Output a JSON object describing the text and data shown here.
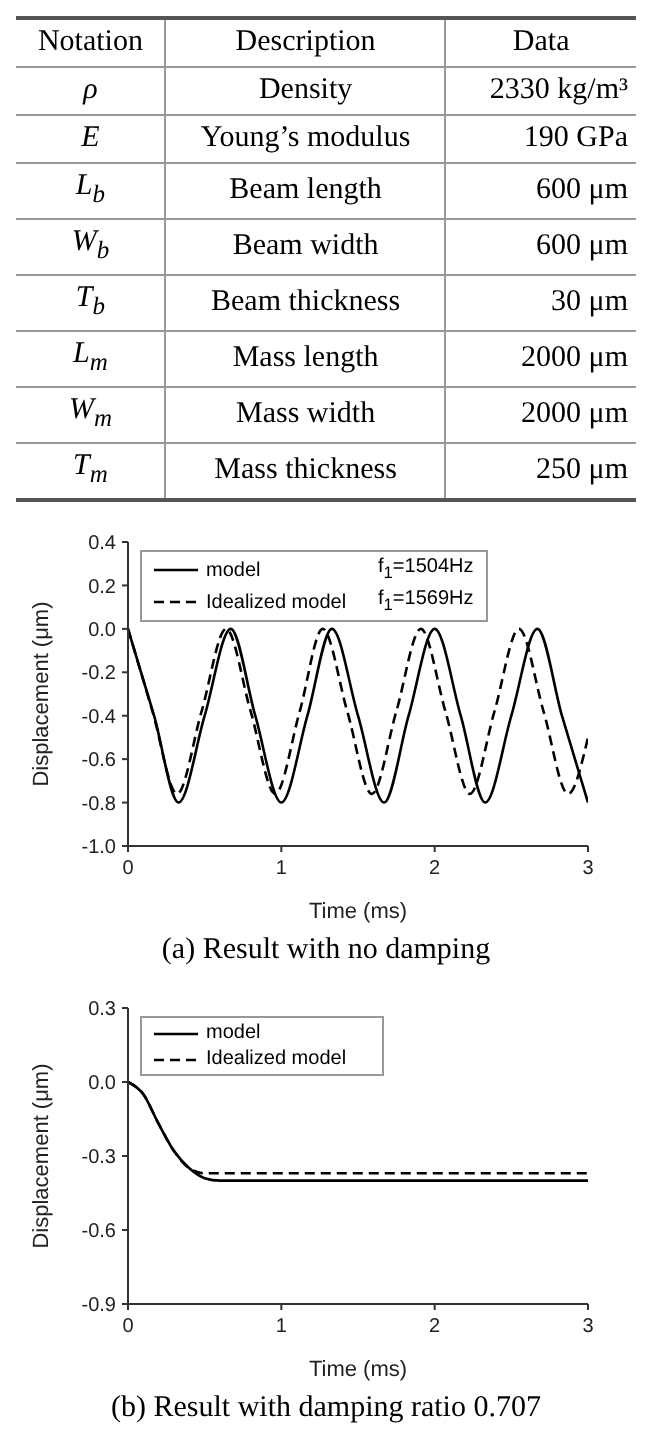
{
  "chart_data": [
    {
      "type": "other",
      "annotations": [
        "Notation",
        "Description",
        "Data"
      ],
      "y_categories": [
        "ρ",
        "E",
        "L$_{b}$",
        "W$_{b}$",
        "T$_{b}$",
        "L$_{m}$",
        "W$_{m}$",
        "T$_{m}$"
      ],
      "categories": [
        "Density",
        "Young’s modulus",
        "Beam length",
        "Beam width",
        "Beam thickness",
        "Mass length",
        "Mass width",
        "Mass thickness"
      ],
      "value_labels": [
        "2330 kg/m³",
        "190 GPa",
        "600 μm",
        "600 μm",
        "30 μm",
        "2000 μm",
        "2000 μm",
        "250 μm"
      ]
    },
    {
      "type": "line",
      "title": "(a) Result with no damping",
      "xlabel": "Time (ms)",
      "ylabel": "Displacement (μm)",
      "xlim": [
        0,
        3
      ],
      "xticks": [
        0,
        1,
        2,
        3
      ],
      "ylim": [
        -1.0,
        0.4
      ],
      "yticks": [
        {
          "value": -1.0,
          "label": "-1.0"
        },
        {
          "value": -0.8,
          "label": "-0.8"
        },
        {
          "value": -0.6,
          "label": "-0.6"
        },
        {
          "value": -0.4,
          "label": "-0.4"
        },
        {
          "value": -0.2,
          "label": "-0.2"
        },
        {
          "value": 0,
          "label": "0.0"
        },
        {
          "value": 0.2,
          "label": "0.2"
        },
        {
          "value": 0.4,
          "label": "0.4"
        }
      ],
      "legend": "top left",
      "grid": false,
      "annotations": [
        "f$_{1}$=1504Hz",
        "f$_{1}$=1569Hz"
      ],
      "series": [
        {
          "name": "model",
          "color": "#000000",
          "line_style": "solid",
          "x": [
            0,
            0.17,
            0.33,
            0.5,
            0.67,
            0.83,
            1.0,
            1.17,
            1.33,
            1.5,
            1.67,
            1.83,
            2.0,
            2.17,
            2.33,
            2.5,
            2.67,
            2.83,
            3.0
          ],
          "values": [
            0,
            -0.4,
            -0.8,
            -0.4,
            0,
            -0.4,
            -0.8,
            -0.4,
            0,
            -0.4,
            -0.8,
            -0.4,
            0,
            -0.4,
            -0.8,
            -0.4,
            0,
            -0.4,
            -0.8
          ]
        },
        {
          "name": "Idealized model",
          "color": "#000000",
          "line_style": "dashed",
          "x": [
            0,
            0.16,
            0.32,
            0.48,
            0.64,
            0.8,
            0.96,
            1.12,
            1.27,
            1.43,
            1.59,
            1.75,
            1.91,
            2.07,
            2.23,
            2.39,
            2.55,
            2.71,
            2.87,
            3.0
          ],
          "values": [
            0,
            -0.38,
            -0.76,
            -0.38,
            0,
            -0.38,
            -0.76,
            -0.38,
            0,
            -0.38,
            -0.76,
            -0.38,
            0,
            -0.38,
            -0.76,
            -0.38,
            0,
            -0.38,
            -0.76,
            -0.5
          ]
        }
      ]
    },
    {
      "type": "line",
      "title": "(b) Result with damping ratio 0.707",
      "xlabel": "Time (ms)",
      "ylabel": "Displacement (μm)",
      "xlim": [
        0,
        3
      ],
      "xticks": [
        0,
        1,
        2,
        3
      ],
      "ylim": [
        -0.9,
        0.3
      ],
      "yticks": [
        {
          "value": -0.9,
          "label": "-0.9"
        },
        {
          "value": -0.6,
          "label": "-0.6"
        },
        {
          "value": -0.3,
          "label": "-0.3"
        },
        {
          "value": 0,
          "label": "0.0"
        },
        {
          "value": 0.3,
          "label": "0.3"
        }
      ],
      "legend": "top left",
      "grid": false,
      "series": [
        {
          "name": "model",
          "color": "#000000",
          "line_style": "solid",
          "x": [
            0,
            0.1,
            0.2,
            0.3,
            0.4,
            0.5,
            0.6,
            3.0
          ],
          "values": [
            0,
            -0.05,
            -0.17,
            -0.28,
            -0.35,
            -0.39,
            -0.4,
            -0.4
          ]
        },
        {
          "name": "Idealized model",
          "color": "#000000",
          "line_style": "dashed",
          "x": [
            0,
            0.1,
            0.2,
            0.3,
            0.4,
            0.5,
            3.0
          ],
          "values": [
            0,
            -0.05,
            -0.17,
            -0.28,
            -0.35,
            -0.37,
            -0.37
          ]
        }
      ]
    }
  ]
}
